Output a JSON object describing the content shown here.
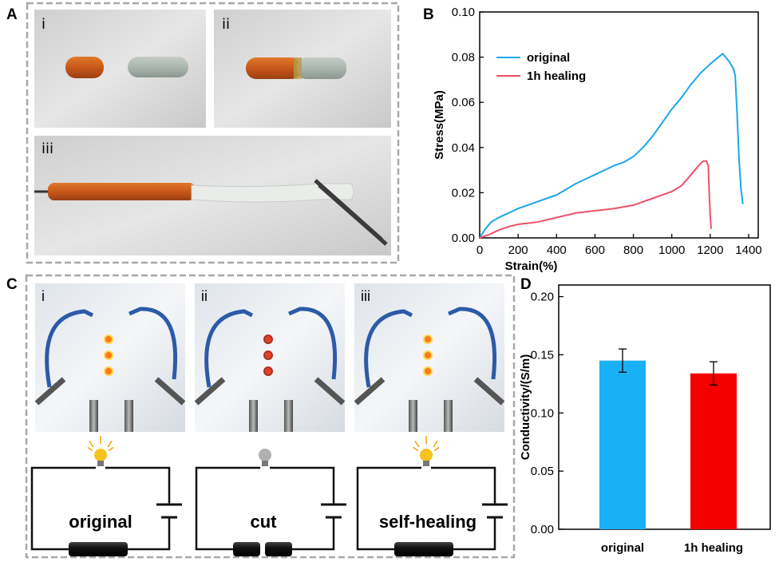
{
  "panels": {
    "a": {
      "letter": "A",
      "sub": [
        "i",
        "ii",
        "iii"
      ]
    },
    "b": {
      "letter": "B"
    },
    "c": {
      "letter": "C",
      "sub": [
        "i",
        "ii",
        "iii"
      ],
      "circuits": [
        "original",
        "cut",
        "self-healing"
      ]
    },
    "d": {
      "letter": "D"
    }
  },
  "colors": {
    "original": "#1aa8e8",
    "healing": "#f0506a",
    "bar_original": "#1ab0f5",
    "bar_healing": "#f40000",
    "bulb_on": "#f6c21b",
    "bulb_off": "#b0b0b0"
  },
  "chart_data": [
    {
      "type": "line",
      "panel": "B",
      "xlabel": "Strain(%)",
      "ylabel": "Stress(MPa)",
      "xlim": [
        0,
        1450
      ],
      "ylim": [
        0,
        0.1
      ],
      "xticks": [
        0,
        200,
        400,
        600,
        800,
        1000,
        1200,
        1400
      ],
      "yticks": [
        0.0,
        0.02,
        0.04,
        0.06,
        0.08,
        0.1
      ],
      "xtick_labels": [
        "0",
        "200",
        "400",
        "600",
        "800",
        "1000",
        "1200",
        "1400"
      ],
      "ytick_labels": [
        "0.00",
        "0.02",
        "0.04",
        "0.06",
        "0.08",
        "0.10"
      ],
      "legend": "top-left",
      "series": [
        {
          "name": "original",
          "x": [
            0,
            30,
            60,
            100,
            150,
            200,
            250,
            300,
            350,
            400,
            450,
            500,
            550,
            600,
            650,
            700,
            750,
            800,
            850,
            900,
            950,
            1000,
            1050,
            1100,
            1150,
            1200,
            1250,
            1265,
            1280,
            1300,
            1320,
            1330,
            1340,
            1350,
            1360,
            1370
          ],
          "y": [
            0,
            0.004,
            0.007,
            0.009,
            0.011,
            0.013,
            0.0145,
            0.016,
            0.0175,
            0.019,
            0.0215,
            0.024,
            0.026,
            0.028,
            0.03,
            0.032,
            0.0335,
            0.036,
            0.04,
            0.045,
            0.051,
            0.057,
            0.062,
            0.068,
            0.073,
            0.077,
            0.0805,
            0.0815,
            0.08,
            0.078,
            0.075,
            0.072,
            0.055,
            0.035,
            0.022,
            0.015
          ]
        },
        {
          "name": "1h healing",
          "x": [
            0,
            50,
            100,
            150,
            200,
            250,
            300,
            350,
            400,
            450,
            500,
            600,
            700,
            800,
            900,
            1000,
            1050,
            1100,
            1130,
            1150,
            1165,
            1180,
            1190,
            1195,
            1200,
            1205
          ],
          "y": [
            0,
            0.0015,
            0.0035,
            0.005,
            0.006,
            0.0065,
            0.007,
            0.008,
            0.009,
            0.01,
            0.011,
            0.012,
            0.013,
            0.0145,
            0.0175,
            0.0205,
            0.023,
            0.028,
            0.031,
            0.033,
            0.034,
            0.034,
            0.032,
            0.02,
            0.01,
            0.004
          ]
        }
      ]
    },
    {
      "type": "bar",
      "panel": "D",
      "ylabel": "Conductivity/(S/m)",
      "categories": [
        "original",
        "1h healing"
      ],
      "values": [
        0.145,
        0.134
      ],
      "errors": [
        0.01,
        0.01
      ],
      "ylim": [
        0,
        0.21
      ],
      "yticks": [
        0.0,
        0.05,
        0.1,
        0.15,
        0.2
      ],
      "ytick_labels": [
        "0.00",
        "0.05",
        "0.10",
        "0.15",
        "0.20"
      ]
    }
  ]
}
